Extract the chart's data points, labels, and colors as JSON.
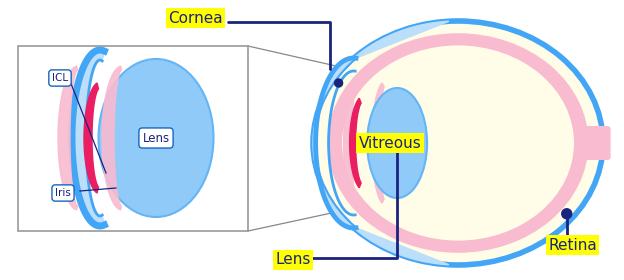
{
  "bg_color": "#ffffff",
  "sclera_color": "#fffde7",
  "sclera_border": "#42a5f5",
  "choroid_color": "#f8bbd0",
  "cornea_color": "#bbdefb",
  "lens_color": "#90caf9",
  "iris_color": "#f8bbd0",
  "icl_color": "#e91e63",
  "dark_blue": "#1a237e",
  "mid_blue": "#1565c0",
  "label_bg": "#ffff00",
  "pointer_color": "#1a237e",
  "zoom_border": "#888888",
  "nerve_color": "#f8bbd0",
  "cornea_label": "Cornea",
  "lens_label": "Lens",
  "vitreous_label": "Vitreous",
  "retina_label": "Retina",
  "icl_label": "ICL",
  "iris_label": "Iris",
  "lens_zoom_label": "Lens"
}
